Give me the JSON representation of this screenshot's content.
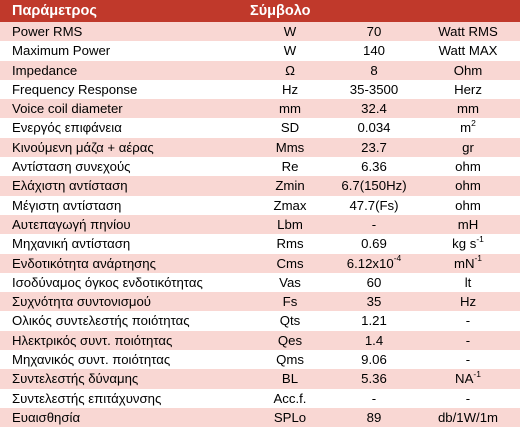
{
  "header": {
    "parameter_label": "Παράμετρος",
    "symbol_label": "Σύμβολο"
  },
  "rows": [
    {
      "name": "Power RMS",
      "symbol": "W",
      "value": "70",
      "unit": "Watt RMS"
    },
    {
      "name": "Maximum Power",
      "symbol": "W",
      "value": "140",
      "unit": "Watt MAX"
    },
    {
      "name": "Impedance",
      "symbol": "Ω",
      "value": "8",
      "unit": "Ohm"
    },
    {
      "name": "Frequency Response",
      "symbol": "Hz",
      "value": "35-3500",
      "unit": "Herz"
    },
    {
      "name": "Voice coil diameter",
      "symbol": "mm",
      "value": "32.4",
      "unit": "mm"
    },
    {
      "name": "Ενεργός επιφάνεια",
      "symbol": "SD",
      "value": "0.034",
      "unit": "m",
      "unit_sup": "2"
    },
    {
      "name": "Κινούμενη μάζα + αέρας",
      "symbol": "Mms",
      "value": "23.7",
      "unit": "gr"
    },
    {
      "name": "Αντίσταση συνεχούς",
      "symbol": "Re",
      "value": "6.36",
      "unit": "ohm"
    },
    {
      "name": "Ελάχιστη αντίσταση",
      "symbol": "Zmin",
      "value": "6.7(150Hz)",
      "unit": "ohm"
    },
    {
      "name": "Μέγιστη αντίσταση",
      "symbol": "Zmax",
      "value": "47.7(Fs)",
      "unit": "ohm"
    },
    {
      "name": "Αυτεπαγωγή πηνίου",
      "symbol": "Lbm",
      "value": "-",
      "unit": "mH"
    },
    {
      "name": "Μηχανική αντίσταση",
      "symbol": "Rms",
      "value": "0.69",
      "unit": "kg s",
      "unit_sup": "-1"
    },
    {
      "name": "Ενδοτικότητα ανάρτησης",
      "symbol": "Cms",
      "value": "6.12x10",
      "value_sup": "-4",
      "unit": "mN",
      "unit_sup": "-1"
    },
    {
      "name": "Ισοδύναμος όγκος ενδοτικότητας",
      "symbol": "Vas",
      "value": "60",
      "unit": "lt"
    },
    {
      "name": "Συχνότητα συντονισμού",
      "symbol": "Fs",
      "value": "35",
      "unit": "Hz"
    },
    {
      "name": "Ολικός συντελεστής ποιότητας",
      "symbol": "Qts",
      "value": "1.21",
      "unit": "-"
    },
    {
      "name": "Ηλεκτρικός συντ. ποιότητας",
      "symbol": "Qes",
      "value": "1.4",
      "unit": "-"
    },
    {
      "name": "Μηχανικός συντ. ποιότητας",
      "symbol": "Qms",
      "value": "9.06",
      "unit": "-"
    },
    {
      "name": "Συντελεστής δύναμης",
      "symbol": "BL",
      "value": "5.36",
      "unit": "NA",
      "unit_sup": "-1"
    },
    {
      "name": "Συντελεστής επιτάχυνσης",
      "symbol": "Acc.f.",
      "value": "-",
      "unit": "-"
    },
    {
      "name": "Ευαισθησία",
      "symbol": "SPLo",
      "value": "89",
      "unit": "db/1W/1m"
    }
  ],
  "colors": {
    "header_bg": "#c0392b",
    "row_alt_bg": "#f9d7d3"
  }
}
